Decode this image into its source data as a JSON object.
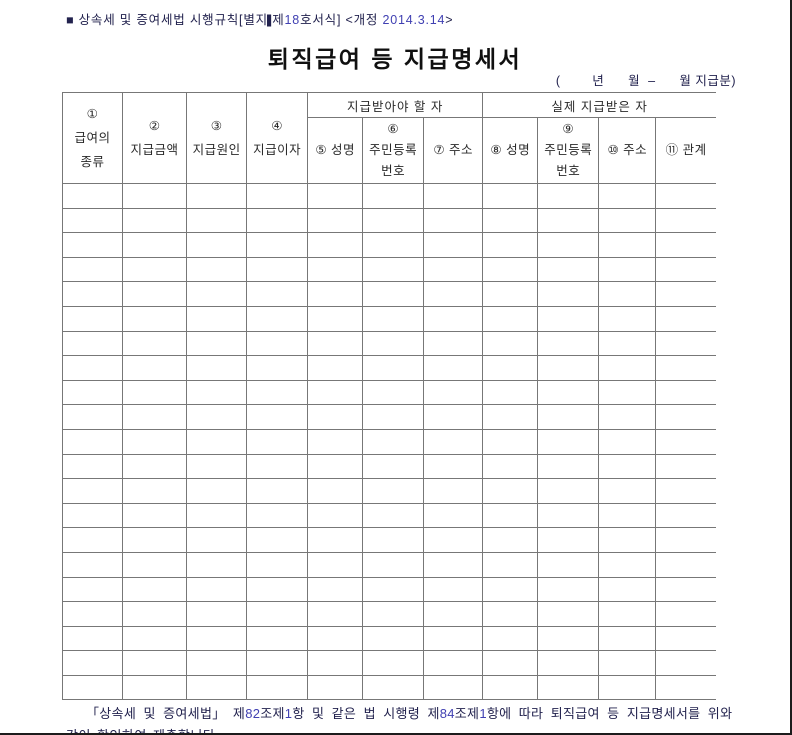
{
  "page": {
    "note_parts": [
      {
        "text": "■ 상속세 및 증여세법 시행규칙[별지",
        "style": "dark"
      },
      {
        "text": "|",
        "style": "bar"
      },
      {
        "text": "제",
        "style": "dark"
      },
      {
        "text": "18",
        "style": "num"
      },
      {
        "text": "호서식] <개정 ",
        "style": "dark"
      },
      {
        "text": "2014.3.14",
        "style": "num"
      },
      {
        "text": ">",
        "style": "dark"
      }
    ],
    "title": "퇴직급여  등  지급명세서",
    "period": "(        년      월  –      월 지급분)"
  },
  "table": {
    "group_headers": {
      "payee_due": "지급받아야 할 자",
      "payee_actual": "실제 지급받은 자"
    },
    "columns": [
      {
        "id": "salary-type",
        "label": "①\n급여의\n종류"
      },
      {
        "id": "payment-amount",
        "label": "②\n지급금액"
      },
      {
        "id": "payment-cause",
        "label": "③\n지급원인"
      },
      {
        "id": "payment-interest",
        "label": "④\n지급이자"
      },
      {
        "id": "due-name",
        "label": "⑤ 성명"
      },
      {
        "id": "due-resident-id",
        "label": "⑥\n주민등록\n번호"
      },
      {
        "id": "due-address",
        "label": "⑦ 주소"
      },
      {
        "id": "actual-name",
        "label": "⑧ 성명"
      },
      {
        "id": "actual-resident-id",
        "label": "⑨\n주민등록\n번호"
      },
      {
        "id": "actual-address",
        "label": "⑩ 주소"
      },
      {
        "id": "actual-relation",
        "label": "⑪ 관계"
      }
    ],
    "body_rows": 21,
    "body_cols": 11
  },
  "footer": {
    "line1_parts": [
      {
        "text": "「상속세 및 증여세법」  제",
        "style": "dark"
      },
      {
        "text": "82",
        "style": "num"
      },
      {
        "text": "조제",
        "style": "dark"
      },
      {
        "text": "1",
        "style": "num"
      },
      {
        "text": "항 및 같은 법 시행령 제",
        "style": "dark"
      },
      {
        "text": "84",
        "style": "num"
      },
      {
        "text": "조제",
        "style": "dark"
      },
      {
        "text": "1",
        "style": "num"
      },
      {
        "text": "항에 따라 퇴직급여 등 지급명세서를 위와",
        "style": "dark"
      }
    ],
    "line2": "같이 확인하여 제출합니다."
  },
  "colors": {
    "grid_line": "#777777",
    "page_edge": "#1c1c1c",
    "dark_text": "#22224e",
    "number_text": "#4040b2"
  }
}
